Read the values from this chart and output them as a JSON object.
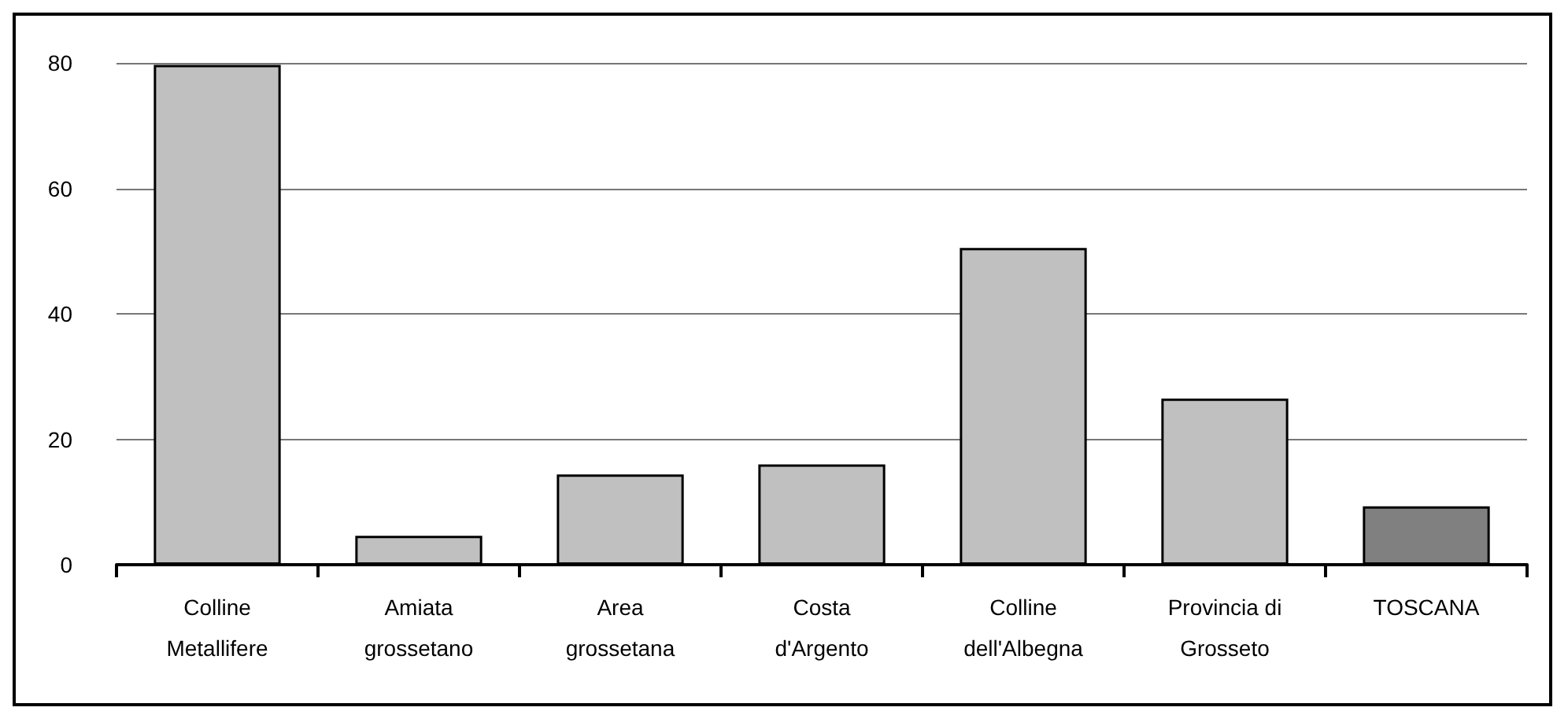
{
  "chart_data": {
    "type": "bar",
    "categories": [
      "Colline\nMetallifere",
      "Amiata\ngrossetano",
      "Area\ngrossetana",
      "Costa\nd'Argento",
      "Colline\ndell'Albegna",
      "Provincia di\nGrosseto",
      "TOSCANA"
    ],
    "values": [
      79.7,
      4.6,
      14.4,
      16.0,
      50.5,
      26.5,
      9.3
    ],
    "colors": [
      "#c0c0c0",
      "#c0c0c0",
      "#c0c0c0",
      "#c0c0c0",
      "#c0c0c0",
      "#c0c0c0",
      "#808080"
    ],
    "ylim": [
      0,
      80
    ],
    "yticks": [
      0,
      20,
      40,
      60,
      80
    ],
    "grid": "y"
  }
}
